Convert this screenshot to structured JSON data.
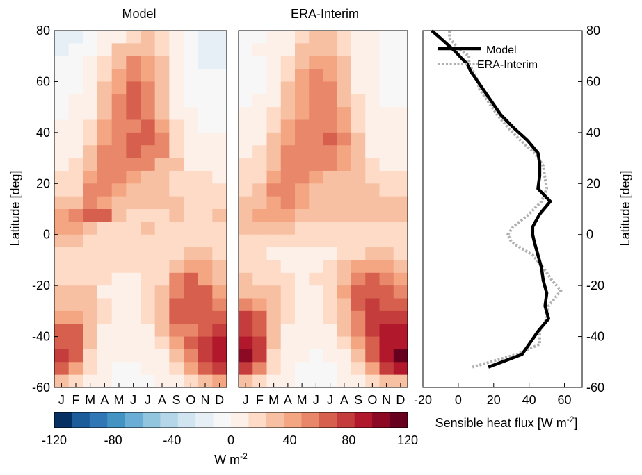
{
  "chart_data": [
    {
      "type": "heatmap",
      "title": "Model",
      "ylabel": "Latitude [deg]",
      "x_ticklabels": [
        "J",
        "F",
        "M",
        "A",
        "M",
        "J",
        "J",
        "A",
        "S",
        "O",
        "N",
        "D"
      ],
      "y_ticks": [
        80,
        60,
        40,
        20,
        0,
        -20,
        -40,
        -60
      ],
      "ylim": [
        -60,
        80
      ],
      "lat_bands": [
        80,
        75,
        70,
        65,
        60,
        55,
        50,
        45,
        40,
        35,
        30,
        25,
        20,
        15,
        10,
        5,
        0,
        -5,
        -10,
        -15,
        -20,
        -25,
        -30,
        -35,
        -40,
        -45,
        -50,
        -55
      ],
      "lat_step": 5,
      "values_wm2": [
        [
          -20,
          -15,
          -5,
          5,
          10,
          20,
          25,
          15,
          0,
          -5,
          -15,
          -20
        ],
        [
          -15,
          -10,
          -5,
          10,
          25,
          30,
          35,
          20,
          5,
          -5,
          -15,
          -15
        ],
        [
          -10,
          -10,
          0,
          15,
          35,
          50,
          40,
          25,
          5,
          -10,
          -15,
          -15
        ],
        [
          -10,
          -5,
          5,
          20,
          45,
          55,
          45,
          25,
          5,
          -10,
          -10,
          -10
        ],
        [
          -5,
          -5,
          5,
          25,
          45,
          60,
          50,
          30,
          10,
          -5,
          -10,
          -10
        ],
        [
          -5,
          0,
          10,
          30,
          55,
          65,
          55,
          30,
          10,
          -5,
          -5,
          -10
        ],
        [
          -5,
          0,
          10,
          35,
          55,
          60,
          55,
          35,
          10,
          0,
          -5,
          -5
        ],
        [
          0,
          5,
          15,
          40,
          50,
          55,
          60,
          45,
          15,
          0,
          -5,
          -5
        ],
        [
          0,
          5,
          20,
          45,
          50,
          60,
          60,
          55,
          20,
          5,
          0,
          0
        ],
        [
          5,
          10,
          25,
          50,
          55,
          60,
          55,
          50,
          20,
          5,
          5,
          0
        ],
        [
          10,
          15,
          30,
          55,
          55,
          55,
          50,
          35,
          25,
          10,
          10,
          5
        ],
        [
          15,
          15,
          40,
          55,
          50,
          40,
          30,
          25,
          20,
          15,
          15,
          10
        ],
        [
          20,
          20,
          50,
          50,
          40,
          25,
          25,
          25,
          20,
          20,
          20,
          15
        ],
        [
          25,
          25,
          50,
          45,
          35,
          25,
          25,
          25,
          25,
          20,
          20,
          20
        ],
        [
          45,
          55,
          70,
          70,
          25,
          20,
          20,
          20,
          25,
          20,
          20,
          25
        ],
        [
          40,
          40,
          25,
          20,
          15,
          20,
          25,
          20,
          20,
          20,
          15,
          20
        ],
        [
          25,
          25,
          20,
          15,
          15,
          15,
          15,
          20,
          20,
          15,
          15,
          15
        ],
        [
          15,
          15,
          15,
          15,
          15,
          15,
          15,
          15,
          20,
          25,
          25,
          20
        ],
        [
          20,
          20,
          20,
          15,
          15,
          15,
          15,
          20,
          35,
          45,
          45,
          30
        ],
        [
          20,
          20,
          20,
          15,
          5,
          10,
          15,
          20,
          55,
          60,
          45,
          35
        ],
        [
          25,
          25,
          25,
          10,
          10,
          10,
          15,
          35,
          55,
          70,
          60,
          40
        ],
        [
          35,
          35,
          25,
          15,
          10,
          10,
          15,
          35,
          60,
          70,
          60,
          55
        ],
        [
          40,
          40,
          35,
          15,
          10,
          5,
          15,
          35,
          60,
          60,
          65,
          70
        ],
        [
          65,
          60,
          35,
          10,
          5,
          5,
          10,
          25,
          50,
          55,
          65,
          75
        ],
        [
          70,
          65,
          25,
          5,
          5,
          5,
          5,
          15,
          40,
          60,
          75,
          85
        ],
        [
          80,
          70,
          20,
          5,
          0,
          0,
          5,
          10,
          30,
          50,
          80,
          85
        ],
        [
          60,
          45,
          15,
          5,
          -5,
          -5,
          0,
          5,
          20,
          45,
          70,
          75
        ],
        [
          30,
          20,
          10,
          0,
          -5,
          -10,
          -5,
          0,
          10,
          20,
          35,
          40
        ]
      ]
    },
    {
      "type": "heatmap",
      "title": "ERA-Interim",
      "x_ticklabels": [
        "J",
        "F",
        "M",
        "A",
        "M",
        "J",
        "J",
        "A",
        "S",
        "O",
        "N",
        "D"
      ],
      "y_ticks": [
        80,
        60,
        40,
        20,
        0,
        -20,
        -40,
        -60
      ],
      "ylim": [
        -60,
        80
      ],
      "lat_bands": [
        80,
        75,
        70,
        65,
        60,
        55,
        50,
        45,
        40,
        35,
        30,
        25,
        20,
        15,
        10,
        5,
        0,
        -5,
        -10,
        -15,
        -20,
        -25,
        -30,
        -35,
        -40,
        -45,
        -50,
        -55
      ],
      "lat_step": 5,
      "values_wm2": [
        [
          -5,
          -5,
          0,
          5,
          15,
          25,
          25,
          15,
          5,
          0,
          -5,
          -5
        ],
        [
          -5,
          0,
          0,
          10,
          25,
          30,
          30,
          20,
          5,
          0,
          -5,
          -5
        ],
        [
          -5,
          -5,
          0,
          15,
          35,
          45,
          40,
          25,
          10,
          0,
          -5,
          -5
        ],
        [
          -5,
          -5,
          5,
          20,
          40,
          50,
          45,
          30,
          10,
          0,
          -5,
          -5
        ],
        [
          -5,
          -5,
          5,
          25,
          45,
          55,
          50,
          30,
          10,
          0,
          -5,
          -5
        ],
        [
          -5,
          0,
          10,
          30,
          45,
          55,
          50,
          35,
          15,
          0,
          -5,
          -5
        ],
        [
          0,
          5,
          15,
          35,
          45,
          55,
          50,
          40,
          15,
          5,
          0,
          0
        ],
        [
          0,
          5,
          20,
          40,
          50,
          55,
          55,
          45,
          20,
          5,
          0,
          0
        ],
        [
          5,
          10,
          25,
          45,
          50,
          55,
          60,
          50,
          25,
          10,
          5,
          5
        ],
        [
          10,
          15,
          30,
          50,
          55,
          55,
          55,
          45,
          25,
          10,
          5,
          5
        ],
        [
          15,
          20,
          35,
          55,
          55,
          55,
          50,
          40,
          25,
          15,
          10,
          10
        ],
        [
          15,
          20,
          45,
          55,
          50,
          45,
          35,
          30,
          25,
          20,
          15,
          15
        ],
        [
          20,
          25,
          50,
          55,
          45,
          35,
          30,
          30,
          25,
          25,
          20,
          20
        ],
        [
          25,
          35,
          45,
          50,
          40,
          30,
          30,
          30,
          30,
          25,
          25,
          25
        ],
        [
          35,
          40,
          45,
          40,
          30,
          25,
          25,
          30,
          30,
          25,
          25,
          25
        ],
        [
          30,
          30,
          30,
          25,
          20,
          20,
          20,
          20,
          20,
          20,
          20,
          20
        ],
        [
          20,
          20,
          15,
          15,
          15,
          15,
          15,
          15,
          20,
          20,
          20,
          20
        ],
        [
          15,
          15,
          10,
          10,
          10,
          10,
          10,
          15,
          20,
          25,
          25,
          20
        ],
        [
          20,
          20,
          15,
          10,
          10,
          10,
          15,
          25,
          40,
          45,
          40,
          30
        ],
        [
          25,
          20,
          20,
          15,
          10,
          15,
          20,
          35,
          55,
          60,
          50,
          40
        ],
        [
          30,
          30,
          25,
          15,
          10,
          10,
          20,
          40,
          60,
          70,
          60,
          50
        ],
        [
          50,
          45,
          30,
          15,
          10,
          10,
          20,
          35,
          60,
          80,
          70,
          65
        ],
        [
          75,
          65,
          35,
          15,
          10,
          5,
          15,
          30,
          55,
          80,
          80,
          80
        ],
        [
          80,
          70,
          30,
          10,
          5,
          5,
          10,
          25,
          50,
          75,
          85,
          85
        ],
        [
          85,
          75,
          25,
          5,
          0,
          5,
          5,
          15,
          40,
          70,
          90,
          95
        ],
        [
          100,
          80,
          20,
          5,
          0,
          -5,
          0,
          10,
          30,
          60,
          95,
          110
        ],
        [
          75,
          55,
          15,
          5,
          -5,
          -5,
          -5,
          5,
          20,
          45,
          80,
          90
        ],
        [
          25,
          20,
          10,
          0,
          -5,
          -10,
          -5,
          0,
          10,
          20,
          30,
          35
        ]
      ]
    },
    {
      "type": "line",
      "xlabel": "Sensible heat flux [W m",
      "xlabel_superscript": "-2",
      "xlabel_suffix": "]",
      "ylabel": "Latitude [deg]",
      "xlim": [
        -20,
        70
      ],
      "ylim": [
        -60,
        80
      ],
      "x_ticks": [
        -20,
        0,
        20,
        40,
        60
      ],
      "y_ticks": [
        80,
        60,
        40,
        20,
        0,
        -20,
        -40,
        -60
      ],
      "series": [
        {
          "name": "Model",
          "color": "#000000",
          "lat": [
            80,
            77,
            72,
            69,
            67,
            64,
            60,
            55,
            51,
            47,
            42,
            37,
            32,
            28,
            23,
            18,
            13,
            8,
            3,
            0,
            -3,
            -8,
            -13,
            -18,
            -23,
            -28,
            -33,
            -38,
            -43,
            -47,
            -52
          ],
          "flux": [
            -15,
            -10,
            -2,
            2,
            5,
            7,
            11,
            16,
            20,
            24,
            31,
            39,
            45,
            46,
            46,
            45,
            52,
            46,
            42,
            42,
            43,
            45,
            47,
            48,
            50,
            49,
            51,
            45,
            40,
            36,
            17
          ]
        },
        {
          "name": "ERA-Interim",
          "color": "#b0b0b0",
          "lat": [
            80,
            77,
            73,
            70,
            67,
            62,
            57,
            52,
            47,
            42,
            37,
            32,
            29,
            27,
            22,
            18,
            13,
            8,
            3,
            0,
            -3,
            -8,
            -13,
            -18,
            -22,
            -28,
            -33,
            -38,
            -43,
            -47,
            -52
          ],
          "flux": [
            -5,
            -5,
            0,
            6,
            6,
            10,
            12,
            17,
            22,
            28,
            35,
            43,
            46,
            48,
            49,
            50,
            47,
            40,
            31,
            28,
            30,
            42,
            48,
            53,
            58,
            51,
            50,
            46,
            46,
            33,
            8
          ]
        }
      ]
    }
  ],
  "colorbar": {
    "ticks": [
      -120,
      -80,
      -40,
      0,
      40,
      80,
      120
    ],
    "label": "W m",
    "label_superscript": "-2",
    "bins": [
      -120,
      -110,
      -100,
      -90,
      -80,
      -70,
      -60,
      -50,
      -40,
      -30,
      -20,
      -10,
      0,
      10,
      20,
      30,
      40,
      50,
      60,
      70,
      80,
      90,
      100,
      110,
      120
    ],
    "colors": [
      "#053061",
      "#1c5c9a",
      "#2f77b5",
      "#4393c3",
      "#6aaed6",
      "#92c5de",
      "#b4d6e8",
      "#d1e5f0",
      "#e6eff5",
      "#f7f7f7",
      "#fdf0e9",
      "#fddbc7",
      "#f8c0a3",
      "#f4a582",
      "#e8876a",
      "#d6604d",
      "#c43c3c",
      "#b2182b",
      "#8c0a24",
      "#67001f"
    ]
  }
}
